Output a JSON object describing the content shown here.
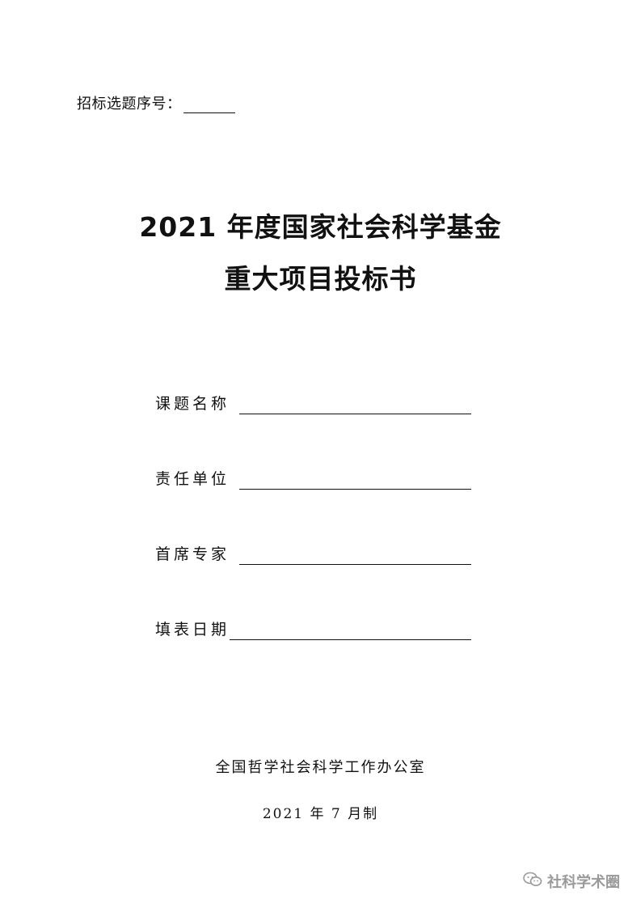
{
  "header": {
    "serial_label": "招标选题序号："
  },
  "title": {
    "line1": "2021 年度国家社会科学基金",
    "line2": "重大项目投标书"
  },
  "fields": [
    {
      "label": "课题名称"
    },
    {
      "label": "责任单位"
    },
    {
      "label": "首席专家"
    },
    {
      "label": "填表日期"
    }
  ],
  "footer": {
    "office": "全国哲学社会科学工作办公室",
    "date": "2021 年 7 月制"
  },
  "watermark": {
    "icon": "wechat-icon",
    "text": "社科学术圈"
  }
}
